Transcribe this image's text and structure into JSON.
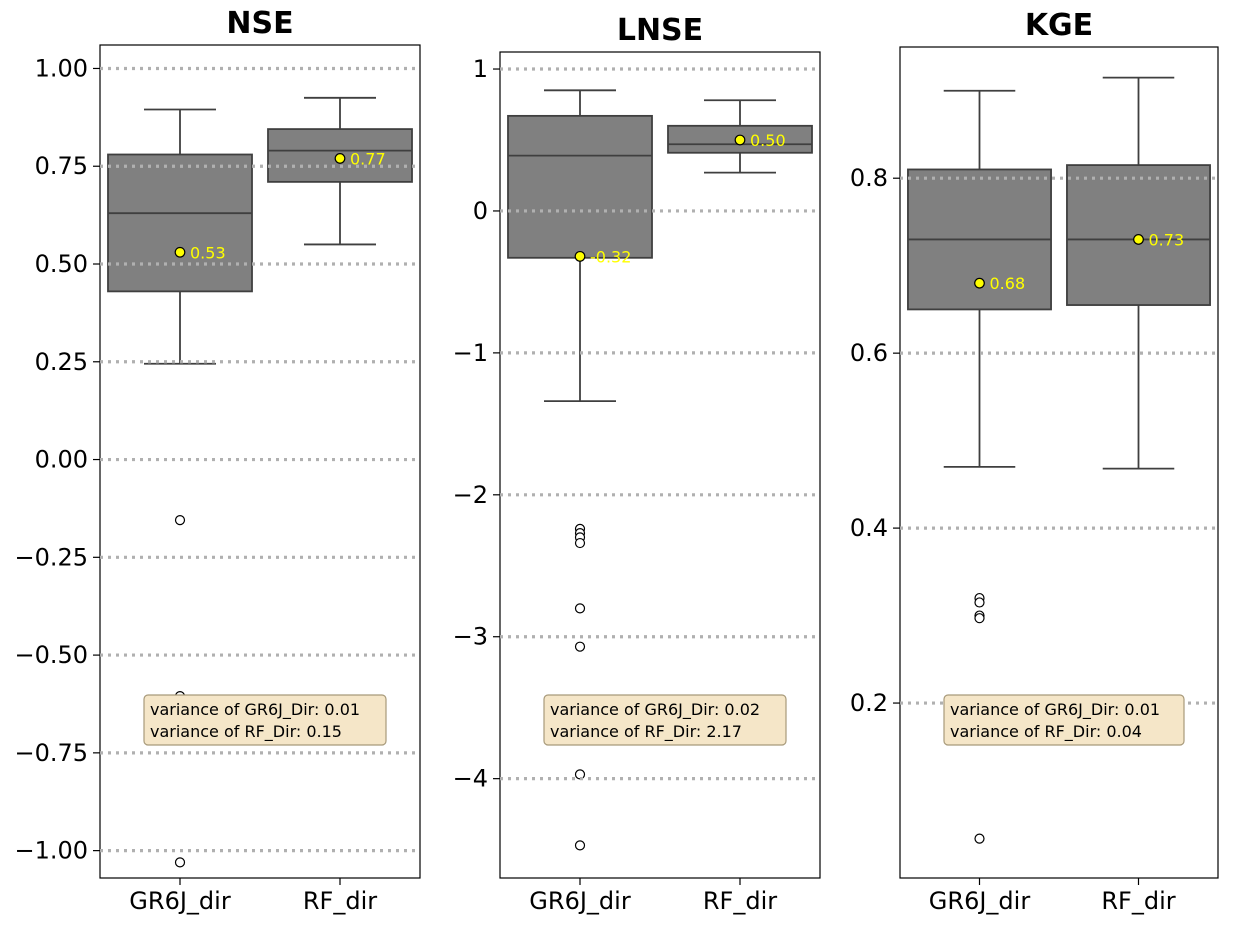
{
  "colors": {
    "box_fill": "#808080",
    "box_edge": "#3f3f3f",
    "grid": "#b0b0b0",
    "mean_marker": "#ffff00",
    "mean_label": "#ffff00",
    "annotation_bg": "#f5e6c8",
    "annotation_edge": "#a89a7a"
  },
  "chart_data": [
    {
      "type": "box",
      "title": "NSE",
      "categories": [
        "GR6J_dir",
        "RF_dir"
      ],
      "ylim": [
        -1.07,
        1.06
      ],
      "yticks": [
        1.0,
        0.75,
        0.5,
        0.25,
        0.0,
        -0.25,
        -0.5,
        -0.75,
        -1.0
      ],
      "ytick_labels": [
        "1.00",
        "0.75",
        "0.50",
        "0.25",
        "0.00",
        "−0.25",
        "−0.50",
        "−0.75",
        "−1.00"
      ],
      "grid": "horizontal dotted",
      "boxes": [
        {
          "q1": 0.43,
          "median": 0.63,
          "q3": 0.78,
          "whisker_low": 0.245,
          "whisker_high": 0.895,
          "mean": 0.53,
          "mean_label": "0.53",
          "outliers": [
            -0.155,
            -0.605,
            -1.03
          ]
        },
        {
          "q1": 0.71,
          "median": 0.79,
          "q3": 0.845,
          "whisker_low": 0.55,
          "whisker_high": 0.925,
          "mean": 0.77,
          "mean_label": "0.77",
          "outliers": []
        }
      ],
      "annotation": [
        "variance of GR6J_Dir: 0.01",
        "variance of RF_Dir: 0.15"
      ]
    },
    {
      "type": "box",
      "title": "LNSE",
      "categories": [
        "GR6J_dir",
        "RF_dir"
      ],
      "ylim": [
        -4.7,
        1.12
      ],
      "yticks": [
        1,
        0,
        -1,
        -2,
        -3,
        -4
      ],
      "ytick_labels": [
        "1",
        "0",
        "−1",
        "−2",
        "−3",
        "−4"
      ],
      "grid": "horizontal dotted",
      "boxes": [
        {
          "q1": -0.33,
          "median": 0.39,
          "q3": 0.67,
          "whisker_low": -1.34,
          "whisker_high": 0.85,
          "mean": -0.32,
          "mean_label": "-0.32",
          "outliers": [
            -2.24,
            -2.27,
            -2.3,
            -2.34,
            -2.8,
            -3.07,
            -3.97,
            -4.47
          ]
        },
        {
          "q1": 0.41,
          "median": 0.47,
          "q3": 0.6,
          "whisker_low": 0.27,
          "whisker_high": 0.78,
          "mean": 0.5,
          "mean_label": "0.50",
          "outliers": []
        }
      ],
      "annotation": [
        "variance of GR6J_Dir: 0.02",
        "variance of RF_Dir: 2.17"
      ]
    },
    {
      "type": "box",
      "title": "KGE",
      "categories": [
        "GR6J_dir",
        "RF_dir"
      ],
      "ylim": [
        0.0,
        0.95
      ],
      "yticks": [
        0.8,
        0.6,
        0.4,
        0.2
      ],
      "ytick_labels": [
        "0.8",
        "0.6",
        "0.4",
        "0.2"
      ],
      "grid": "horizontal dotted",
      "boxes": [
        {
          "q1": 0.65,
          "median": 0.73,
          "q3": 0.81,
          "whisker_low": 0.47,
          "whisker_high": 0.9,
          "mean": 0.68,
          "mean_label": "0.68",
          "outliers": [
            0.32,
            0.315,
            0.3,
            0.297,
            0.045
          ]
        },
        {
          "q1": 0.655,
          "median": 0.73,
          "q3": 0.815,
          "whisker_low": 0.468,
          "whisker_high": 0.915,
          "mean": 0.73,
          "mean_label": "0.73",
          "outliers": []
        }
      ],
      "annotation": [
        "variance of GR6J_Dir: 0.01",
        "variance of RF_Dir: 0.04"
      ]
    }
  ]
}
